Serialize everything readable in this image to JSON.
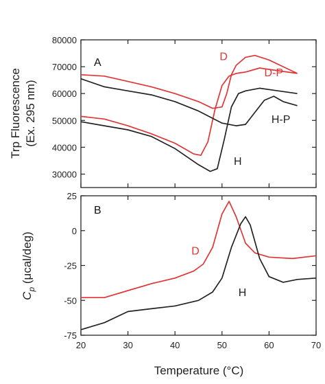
{
  "chart_data": [
    {
      "type": "line",
      "panel_label": "A",
      "xlim": [
        20,
        70
      ],
      "ylim": [
        25000,
        80000
      ],
      "yticks": [
        30000,
        40000,
        50000,
        60000,
        70000,
        80000
      ],
      "ylabel_line1": "Trp Fluorescence",
      "ylabel_line2": "(Ex. 295 nm)",
      "grid": false,
      "series": [
        {
          "name": "D",
          "color": "#e03535",
          "label_x": 49.5,
          "label_y": 72500,
          "x": [
            20,
            25,
            30,
            35,
            40,
            45,
            48,
            50,
            51,
            52,
            53,
            55,
            57,
            60,
            63,
            66
          ],
          "y": [
            67000,
            66500,
            64500,
            62500,
            60000,
            57000,
            54500,
            55000,
            60000,
            67000,
            70500,
            73500,
            74200,
            72500,
            70000,
            67500
          ]
        },
        {
          "name": "D-P",
          "color": "#e03535",
          "label_x": 59,
          "label_y": 66500,
          "x": [
            20,
            25,
            30,
            35,
            40,
            44,
            45.5,
            47,
            48.5,
            50,
            51.5,
            53,
            55,
            58,
            62,
            66
          ],
          "y": [
            51500,
            50500,
            48000,
            45000,
            41500,
            37500,
            37000,
            42000,
            54000,
            63000,
            66500,
            67500,
            68000,
            69500,
            68500,
            67500
          ]
        },
        {
          "name": "H-P",
          "color": "#222222",
          "label_x": 60.5,
          "label_y": 49000,
          "x": [
            20,
            25,
            30,
            35,
            40,
            45,
            50,
            53,
            55,
            57,
            59,
            61,
            63,
            66
          ],
          "y": [
            65500,
            62500,
            61000,
            59500,
            57000,
            53500,
            49000,
            48000,
            48500,
            53000,
            57500,
            59000,
            57000,
            55500
          ]
        },
        {
          "name": "H",
          "color": "#222222",
          "label_x": 52.5,
          "label_y": 33500,
          "x": [
            20,
            25,
            30,
            35,
            40,
            45,
            47.5,
            49,
            50.5,
            52,
            53.5,
            55,
            58,
            62,
            66
          ],
          "y": [
            49500,
            48000,
            46500,
            44000,
            39500,
            33500,
            31000,
            32000,
            43000,
            55000,
            60000,
            61000,
            62000,
            61000,
            60000
          ]
        }
      ]
    },
    {
      "type": "line",
      "panel_label": "B",
      "xlim": [
        20,
        70
      ],
      "ylim": [
        -75,
        25
      ],
      "yticks": [
        -75,
        -50,
        -25,
        0,
        25
      ],
      "xticks": [
        20,
        30,
        40,
        50,
        60,
        70
      ],
      "xlabel": "Temperature (°C)",
      "ylabel_main": "C",
      "ylabel_sub": "p",
      "ylabel_rest": " (μcal/deg)",
      "grid": false,
      "series": [
        {
          "name": "D",
          "color": "#e03535",
          "label_x": 43.5,
          "label_y": -17,
          "x": [
            20,
            25,
            30,
            35,
            40,
            44,
            46,
            48,
            50,
            51.5,
            53,
            55,
            57,
            60,
            65,
            70
          ],
          "y": [
            -48,
            -48,
            -43,
            -38,
            -34,
            -29,
            -24,
            -12,
            12,
            21,
            10,
            -9,
            -16,
            -19,
            -20,
            -18
          ]
        },
        {
          "name": "H",
          "color": "#222222",
          "label_x": 53.5,
          "label_y": -47,
          "x": [
            20,
            25,
            30,
            35,
            40,
            45,
            48,
            50,
            52,
            54,
            55,
            56,
            58,
            60,
            63,
            66,
            70
          ],
          "y": [
            -71,
            -66,
            -58,
            -56,
            -54,
            -50,
            -44,
            -34,
            -12,
            5,
            10,
            4,
            -20,
            -33,
            -37,
            -35,
            -34
          ]
        }
      ]
    }
  ]
}
